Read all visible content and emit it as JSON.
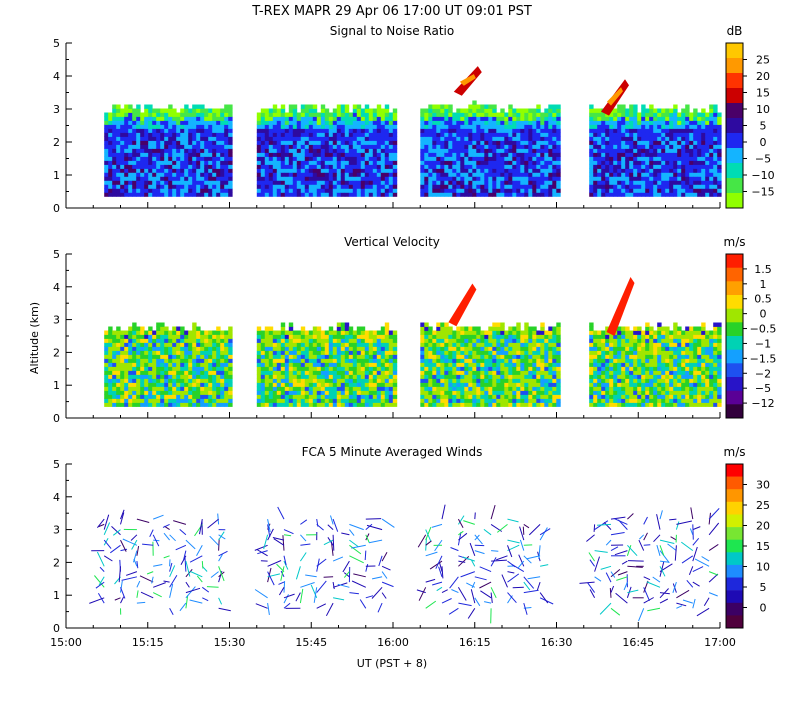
{
  "title": "T-REX  MAPR 29 Apr 06  17:00 UT  09:01  PST",
  "y_axis_label": "Altitude (km)",
  "x_axis_label": "UT  (PST + 8)",
  "x_ticks": [
    "15:00",
    "15:15",
    "15:30",
    "15:45",
    "16:00",
    "16:15",
    "16:30",
    "16:45",
    "17:00"
  ],
  "y_ticks": [
    "0",
    "1",
    "2",
    "3",
    "4",
    "5"
  ],
  "colors": {
    "background": "#ffffff",
    "axis": "#000000"
  },
  "chart_data": [
    {
      "type": "heatmap",
      "title": "Signal to Noise Ratio",
      "colorbar_unit": "dB",
      "colorbar_labels": [
        "25",
        "20",
        "15",
        "10",
        "5",
        "0",
        "−5",
        "−10",
        "−15"
      ],
      "colorbar_colors": [
        "#ffc800",
        "#ff9900",
        "#ff3300",
        "#cc0000",
        "#4a0068",
        "#2e0aa0",
        "#1e28f0",
        "#14b4ff",
        "#00dcb4",
        "#46e646",
        "#90ff00"
      ],
      "x_range": [
        "15:00",
        "17:00"
      ],
      "ylim": [
        0,
        5
      ],
      "data_blocks_ut": [
        [
          "15:07",
          "15:30"
        ],
        [
          "15:35",
          "16:00"
        ],
        [
          "16:05",
          "16:30"
        ],
        [
          "16:36",
          "17:00"
        ]
      ],
      "features": [
        {
          "type": "strong_echo",
          "ut": "16:13",
          "alt_km": [
            3.4,
            4.3
          ],
          "level_db": 20
        },
        {
          "type": "strong_echo",
          "ut": "16:40",
          "alt_km": [
            2.8,
            3.9
          ],
          "level_db": 20
        }
      ]
    },
    {
      "type": "heatmap",
      "title": "Vertical Velocity",
      "colorbar_unit": "m/s",
      "colorbar_labels": [
        "1.5",
        "1",
        "0.5",
        "0",
        "−0.5",
        "−1",
        "−1.5",
        "−2",
        "−5",
        "−12"
      ],
      "colorbar_colors": [
        "#ff1e00",
        "#ff6400",
        "#ffa000",
        "#ffdc00",
        "#a0e600",
        "#28d228",
        "#00d2b4",
        "#14a0ff",
        "#1e50f0",
        "#2814c8",
        "#5a0096",
        "#32003c"
      ],
      "x_range": [
        "15:00",
        "17:00"
      ],
      "ylim": [
        0,
        5
      ],
      "data_blocks_ut": [
        [
          "15:07",
          "15:30"
        ],
        [
          "15:35",
          "16:00"
        ],
        [
          "16:05",
          "16:30"
        ],
        [
          "16:36",
          "17:00"
        ]
      ],
      "features": [
        {
          "type": "updraft",
          "ut": "16:12",
          "alt_km": [
            2.8,
            4.1
          ],
          "value_ms": 1.5
        },
        {
          "type": "updraft",
          "ut": "16:41",
          "alt_km": [
            2.5,
            4.3
          ],
          "value_ms": 1.5
        }
      ]
    },
    {
      "type": "scatter",
      "title": "FCA 5 Minute Averaged Winds",
      "colorbar_unit": "m/s",
      "colorbar_labels": [
        "30",
        "25",
        "20",
        "15",
        "10",
        "5",
        "0"
      ],
      "colorbar_colors": [
        "#ff0000",
        "#ff5a00",
        "#ff9600",
        "#ffd200",
        "#d2f000",
        "#78e632",
        "#1ee650",
        "#00c8c8",
        "#1e8cff",
        "#1e28dc",
        "#1e0ab4",
        "#3c0064",
        "#50003c"
      ],
      "x_range": [
        "15:00",
        "17:00"
      ],
      "ylim": [
        0,
        5
      ],
      "wind_profile_times_ut": [
        "15:07",
        "15:10",
        "15:13",
        "15:16",
        "15:19",
        "15:22",
        "15:25",
        "15:28",
        "15:37",
        "15:40",
        "15:43",
        "15:46",
        "15:49",
        "15:52",
        "15:55",
        "15:58",
        "16:06",
        "16:09",
        "16:12",
        "16:15",
        "16:18",
        "16:21",
        "16:24",
        "16:27",
        "16:37",
        "16:40",
        "16:43",
        "16:46",
        "16:49",
        "16:52",
        "16:55",
        "16:58"
      ],
      "notes": "Stick plot of horizontal wind barbs, colored by speed; most profiles span 0.5–3.5 km."
    }
  ]
}
